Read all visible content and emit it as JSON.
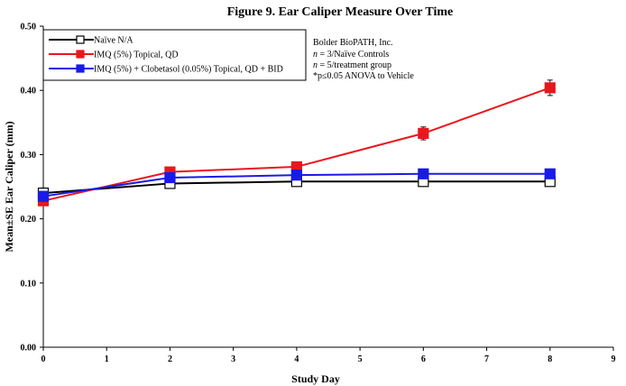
{
  "chart_data": {
    "type": "line",
    "title": "Figure 9. Ear Caliper Measure Over Time",
    "xlabel": "Study Day",
    "ylabel": "Mean±SE Ear Caliper (mm)",
    "xlim": [
      0,
      9
    ],
    "ylim": [
      0,
      0.5
    ],
    "x_ticks": [
      "0",
      "1",
      "2",
      "3",
      "4",
      "5",
      "6",
      "7",
      "8",
      "9"
    ],
    "y_ticks": [
      "0.00",
      "0.10",
      "0.20",
      "0.30",
      "0.40",
      "0.50"
    ],
    "grid": false,
    "legend_position": "top-left",
    "series": [
      {
        "name": "Naïve N/A",
        "color": "#000000",
        "fill": "#ffffff",
        "x": [
          0,
          2,
          4,
          6,
          8
        ],
        "y": [
          0.24,
          0.255,
          0.258,
          0.258,
          0.258
        ],
        "err": [
          0.008,
          0.004,
          0.003,
          0.003,
          0.003
        ]
      },
      {
        "name": "IMQ (5%) Topical, QD",
        "color": "#e8171e",
        "fill": "#e8171e",
        "x": [
          0,
          2,
          4,
          6,
          8
        ],
        "y": [
          0.228,
          0.273,
          0.281,
          0.333,
          0.404
        ],
        "err": [
          0.005,
          0.004,
          0.004,
          0.01,
          0.012
        ]
      },
      {
        "name": "IMQ (5%) + Clobetasol (0.05%) Topical, QD + BID",
        "color": "#1a1ae6",
        "fill": "#1a1ae6",
        "x": [
          0,
          2,
          4,
          6,
          8
        ],
        "y": [
          0.235,
          0.264,
          0.268,
          0.27,
          0.27
        ],
        "err": [
          0.005,
          0.003,
          0.003,
          0.003,
          0.003
        ]
      }
    ],
    "notes": {
      "company": "Bolder BioPATH, Inc.",
      "line2_italic": "n",
      "line2_rest": " = 3/Naïve Controls",
      "line3_italic": "n",
      "line3_rest": " = 5/treatment group",
      "line4": "*p≤0.05 ANOVA to Vehicle"
    }
  }
}
